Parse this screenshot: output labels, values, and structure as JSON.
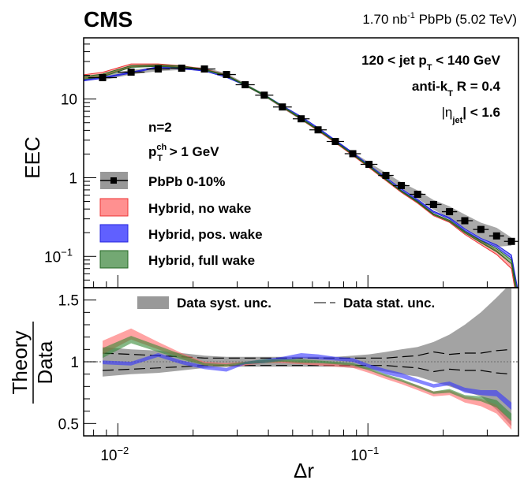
{
  "header": {
    "experiment": "CMS",
    "lumi_prefix": "1.70 nb",
    "lumi_exp": "-1",
    "lumi_suffix": " PbPb (5.02 TeV)"
  },
  "annotations": {
    "jetpt_a": "120 < jet p",
    "jetpt_sub": "T",
    "jetpt_b": " < 140 GeV",
    "algo_a": "anti-k",
    "algo_sub": "T",
    "algo_b": " R = 0.4",
    "eta_a": "|η",
    "eta_sub": "jet",
    "eta_b": "| < 1.6",
    "n_label": "n=2",
    "ptch_a": "p",
    "ptch_sup": "ch",
    "ptch_sub": "T",
    "ptch_b": " > 1 GeV"
  },
  "colors": {
    "data_band": "#8c8c8c",
    "no_wake": "#ff6666",
    "no_wake_line": "#ee3333",
    "pos_wake": "#3333ff",
    "pos_wake_line": "#2222dd",
    "full_wake": "#338833",
    "full_wake_line": "#226622",
    "syst_band": "#999999"
  },
  "chart_data": [
    {
      "type": "line",
      "panel": "top",
      "title": "",
      "xlabel": "Δr",
      "ylabel": "EEC",
      "xscale": "log",
      "yscale": "log",
      "xlim": [
        0.0073,
        0.4
      ],
      "ylim": [
        0.04,
        60
      ],
      "x_ticks": [
        {
          "value": 0.01,
          "base": "10",
          "exp": "−2"
        },
        {
          "value": 0.1,
          "base": "10",
          "exp": "−1"
        }
      ],
      "y_ticks": [
        {
          "value": 10,
          "base": "10",
          "exp": ""
        },
        {
          "value": 1,
          "base": "1",
          "exp": ""
        },
        {
          "value": 0.1,
          "base": "10",
          "exp": "−1"
        }
      ],
      "legend": {
        "placement": "center-left",
        "entries": [
          {
            "key": "data",
            "label": "PbPb 0-10%"
          },
          {
            "key": "no_wake",
            "label": "Hybrid, no wake"
          },
          {
            "key": "pos_wake",
            "label": "Hybrid, pos. wake"
          },
          {
            "key": "full_wake",
            "label": "Hybrid, full wake"
          }
        ]
      },
      "x": [
        0.00869,
        0.0113,
        0.0145,
        0.018,
        0.0222,
        0.0272,
        0.0323,
        0.0385,
        0.0455,
        0.0541,
        0.0632,
        0.0741,
        0.087,
        0.101,
        0.118,
        0.136,
        0.158,
        0.183,
        0.212,
        0.244,
        0.283,
        0.327,
        0.375
      ],
      "series": [
        {
          "name": "PbPb 0-10%",
          "key": "data",
          "values": [
            18.7,
            22.0,
            24.1,
            24.7,
            24.1,
            20.5,
            15.2,
            11.2,
            7.93,
            5.61,
            4.06,
            2.89,
            2.02,
            1.48,
            1.07,
            0.794,
            0.616,
            0.457,
            0.37,
            0.284,
            0.22,
            0.182,
            0.155
          ],
          "syst_rel": [
            0.07,
            0.07,
            0.06,
            0.05,
            0.04,
            0.04,
            0.04,
            0.04,
            0.04,
            0.04,
            0.04,
            0.05,
            0.05,
            0.06,
            0.08,
            0.1,
            0.12,
            0.14,
            0.17,
            0.2,
            0.22,
            0.27,
            0.12
          ]
        },
        {
          "name": "Hybrid, no wake",
          "key": "no_wake",
          "ratio_lo": [
            1.06,
            1.18,
            1.1,
            1.03,
            0.97,
            0.96,
            0.97,
            0.99,
            0.99,
            0.98,
            0.97,
            0.96,
            0.95,
            0.91,
            0.86,
            0.82,
            0.77,
            0.72,
            0.73,
            0.67,
            0.64,
            0.58,
            0.45
          ],
          "ratio_hi": [
            1.17,
            1.27,
            1.16,
            1.07,
            1.0,
            0.99,
            1.0,
            1.01,
            1.01,
            1.0,
            0.99,
            0.99,
            0.98,
            0.94,
            0.89,
            0.85,
            0.81,
            0.76,
            0.77,
            0.72,
            0.7,
            0.65,
            0.52
          ]
        },
        {
          "name": "Hybrid, pos. wake",
          "key": "pos_wake",
          "ratio_lo": [
            0.98,
            0.97,
            1.04,
            0.98,
            0.94,
            0.92,
            0.98,
            0.99,
            1.01,
            1.03,
            1.02,
            1.01,
            1.0,
            0.95,
            0.9,
            0.87,
            0.83,
            0.79,
            0.81,
            0.75,
            0.73,
            0.72,
            0.61
          ],
          "ratio_hi": [
            1.01,
            1.0,
            1.07,
            1.01,
            0.97,
            0.95,
            1.0,
            1.02,
            1.04,
            1.07,
            1.06,
            1.04,
            1.03,
            0.98,
            0.94,
            0.91,
            0.86,
            0.82,
            0.84,
            0.79,
            0.77,
            0.77,
            0.67
          ]
        },
        {
          "name": "Hybrid, full wake",
          "key": "full_wake",
          "ratio_lo": [
            1.03,
            1.15,
            1.08,
            1.02,
            0.97,
            0.96,
            0.98,
            0.99,
            1.0,
            0.99,
            0.99,
            0.98,
            0.97,
            0.93,
            0.88,
            0.84,
            0.79,
            0.74,
            0.75,
            0.7,
            0.68,
            0.63,
            0.52
          ],
          "ratio_hi": [
            1.11,
            1.21,
            1.13,
            1.06,
            0.99,
            0.98,
            1.0,
            1.02,
            1.02,
            1.02,
            1.01,
            1.0,
            0.99,
            0.95,
            0.9,
            0.86,
            0.81,
            0.76,
            0.78,
            0.73,
            0.72,
            0.69,
            0.58
          ]
        }
      ]
    },
    {
      "type": "line",
      "panel": "bottom",
      "title": "",
      "xlabel": "Δr",
      "ylabel_num": "Theory",
      "ylabel_den": "Data",
      "xscale": "log",
      "yscale": "linear",
      "xlim": [
        0.0073,
        0.4
      ],
      "ylim": [
        0.4,
        1.6
      ],
      "y_ticks": [
        {
          "value": 1.5,
          "label": "1.5"
        },
        {
          "value": 1.0,
          "label": "1"
        },
        {
          "value": 0.5,
          "label": "0.5"
        }
      ],
      "reference_line": 1.0,
      "legend": {
        "placement": "top",
        "entries": [
          {
            "key": "syst",
            "label": "Data syst. unc."
          },
          {
            "key": "stat",
            "label": "Data stat. unc."
          }
        ]
      },
      "syst_lo": [
        0.88,
        0.9,
        0.91,
        0.93,
        0.95,
        0.96,
        0.96,
        0.96,
        0.96,
        0.96,
        0.96,
        0.96,
        0.95,
        0.94,
        0.92,
        0.9,
        0.88,
        0.84,
        0.8,
        0.76,
        0.72,
        0.61,
        0.48
      ],
      "syst_hi": [
        1.12,
        1.1,
        1.09,
        1.07,
        1.05,
        1.04,
        1.04,
        1.04,
        1.04,
        1.04,
        1.04,
        1.04,
        1.05,
        1.06,
        1.08,
        1.1,
        1.12,
        1.16,
        1.22,
        1.3,
        1.4,
        1.52,
        1.64
      ],
      "stat_lo": [
        0.93,
        0.94,
        0.95,
        0.96,
        0.97,
        0.97,
        0.97,
        0.97,
        0.97,
        0.97,
        0.97,
        0.97,
        0.97,
        0.97,
        0.97,
        0.96,
        0.95,
        0.92,
        0.94,
        0.93,
        0.93,
        0.91,
        0.9
      ],
      "stat_hi": [
        1.07,
        1.06,
        1.05,
        1.04,
        1.03,
        1.03,
        1.03,
        1.03,
        1.03,
        1.03,
        1.03,
        1.03,
        1.03,
        1.03,
        1.03,
        1.04,
        1.05,
        1.08,
        1.06,
        1.07,
        1.07,
        1.09,
        1.1
      ]
    }
  ]
}
